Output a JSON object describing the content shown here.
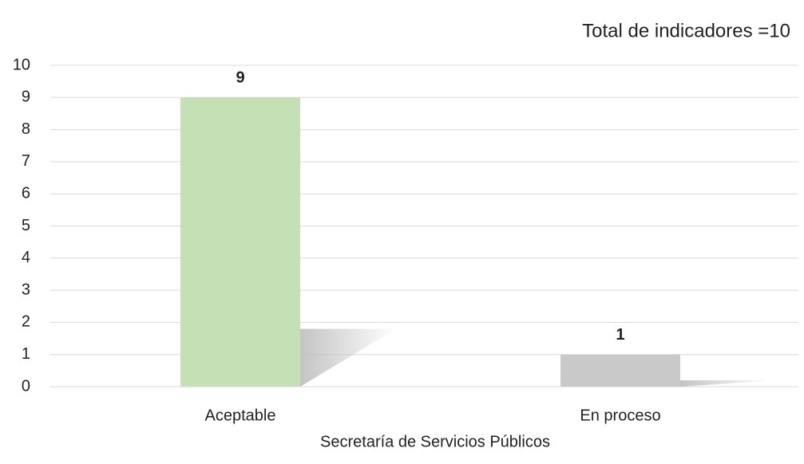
{
  "chart_data": {
    "type": "bar",
    "annotation": "Total de indicadores =10",
    "x_label": "Secretaría de Servicios Públicos",
    "categories": [
      "Aceptable",
      "En proceso"
    ],
    "values": [
      9,
      1
    ],
    "colors": [
      "#c5e0b4",
      "#c9c9c9"
    ],
    "ylim": [
      0,
      10
    ],
    "yticks": [
      0,
      1,
      2,
      3,
      4,
      5,
      6,
      7,
      8,
      9,
      10
    ],
    "grid": true
  }
}
